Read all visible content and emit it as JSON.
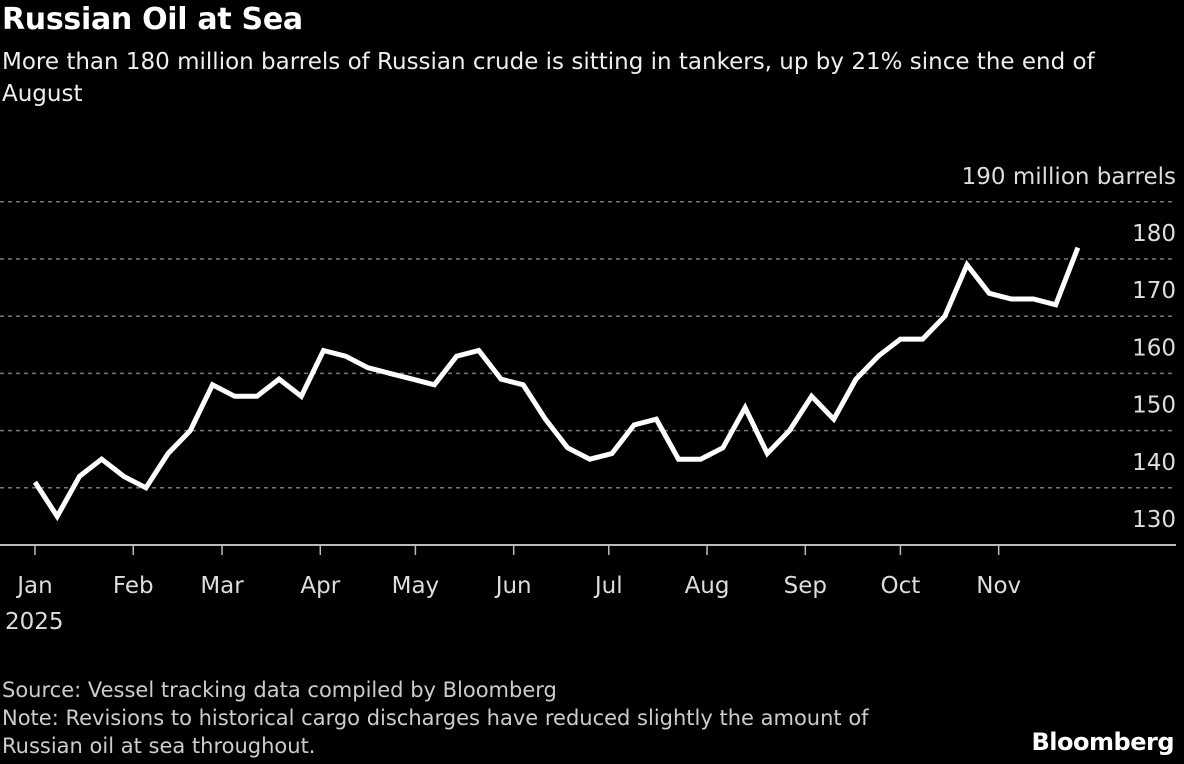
{
  "title": "Russian Oil at Sea",
  "subtitle": "More than 180 million barrels of Russian crude is sitting in tankers, up by 21% since the end of August",
  "source": "Source: Vessel tracking data compiled by Bloomberg",
  "note": "Note: Revisions to historical cargo discharges have reduced slightly the amount of Russian oil at sea throughout.",
  "logo": "Bloomberg",
  "chart_data": {
    "type": "line",
    "title": "Russian Oil at Sea",
    "ylabel": "190 million barrels",
    "ylim": [
      130,
      190
    ],
    "yticks": [
      130,
      140,
      150,
      160,
      170,
      180,
      190
    ],
    "ytick_labels": [
      "130",
      "140",
      "150",
      "160",
      "170",
      "180",
      "190 million barrels"
    ],
    "xlim": [
      "2025-01-01",
      "2025-12-31"
    ],
    "xticks": [
      "2025-01-01",
      "2025-02-01",
      "2025-03-01",
      "2025-04-01",
      "2025-05-01",
      "2025-06-01",
      "2025-07-01",
      "2025-08-01",
      "2025-09-01",
      "2025-10-01",
      "2025-11-01"
    ],
    "xtick_labels": [
      "Jan",
      "Feb",
      "Mar",
      "Apr",
      "May",
      "Jun",
      "Jul",
      "Aug",
      "Sep",
      "Oct",
      "Nov"
    ],
    "xtick_year": "2025",
    "grid": true,
    "line_color": "#ffffff",
    "x": [
      "2025-01-01",
      "2025-01-08",
      "2025-01-15",
      "2025-01-22",
      "2025-01-29",
      "2025-02-05",
      "2025-02-12",
      "2025-02-19",
      "2025-02-26",
      "2025-03-05",
      "2025-03-12",
      "2025-03-19",
      "2025-03-26",
      "2025-04-02",
      "2025-04-09",
      "2025-04-16",
      "2025-04-23",
      "2025-04-30",
      "2025-05-07",
      "2025-05-14",
      "2025-05-21",
      "2025-05-28",
      "2025-06-04",
      "2025-06-11",
      "2025-06-18",
      "2025-06-25",
      "2025-07-02",
      "2025-07-09",
      "2025-07-16",
      "2025-07-23",
      "2025-07-30",
      "2025-08-06",
      "2025-08-13",
      "2025-08-20",
      "2025-08-27",
      "2025-09-03",
      "2025-09-10",
      "2025-09-17",
      "2025-09-24",
      "2025-10-01",
      "2025-10-08",
      "2025-10-15",
      "2025-10-22",
      "2025-10-29",
      "2025-11-05",
      "2025-11-12",
      "2025-11-19",
      "2025-11-26"
    ],
    "values": [
      141,
      135,
      142,
      145,
      142,
      140,
      146,
      150,
      158,
      156,
      156,
      159,
      156,
      164,
      163,
      161,
      160,
      159,
      158,
      163,
      164,
      159,
      158,
      152,
      147,
      145,
      146,
      151,
      152,
      145,
      145,
      147,
      154,
      146,
      150,
      156,
      152,
      159,
      163,
      166,
      166,
      170,
      179,
      174,
      173,
      173,
      172,
      182
    ]
  }
}
